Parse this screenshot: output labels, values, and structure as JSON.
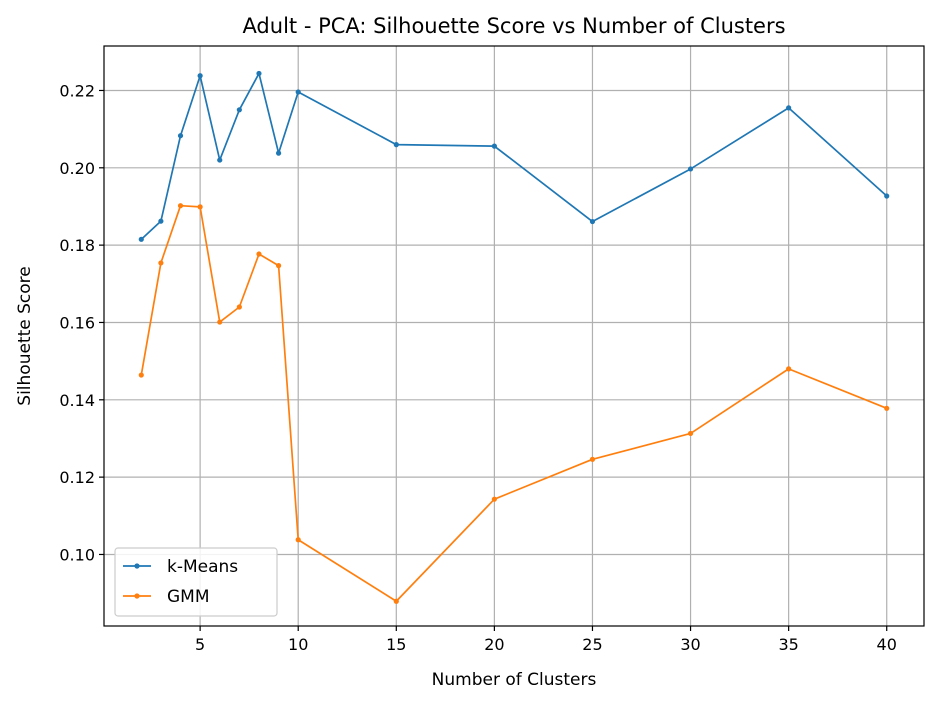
{
  "chart_data": {
    "type": "line",
    "title": "Adult - PCA: Silhouette Score vs Number of Clusters",
    "xlabel": "Number of Clusters",
    "ylabel": "Silhouette Score",
    "xlim": [
      0.1,
      41.9
    ],
    "ylim": [
      0.0815,
      0.2315
    ],
    "xticks": [
      5,
      10,
      15,
      20,
      25,
      30,
      35,
      40
    ],
    "yticks": [
      0.1,
      0.12,
      0.14,
      0.16,
      0.18,
      0.2,
      0.22
    ],
    "ytick_labels": [
      "0.10",
      "0.12",
      "0.14",
      "0.16",
      "0.18",
      "0.20",
      "0.22"
    ],
    "grid": true,
    "legend_position": "lower-left",
    "x": [
      2,
      3,
      4,
      5,
      6,
      7,
      8,
      9,
      10,
      15,
      20,
      25,
      30,
      35,
      40
    ],
    "series": [
      {
        "name": "k-Means",
        "color": "#1f77b4",
        "values": [
          0.1815,
          0.1862,
          0.2083,
          0.2238,
          0.202,
          0.215,
          0.2244,
          0.2038,
          0.2196,
          0.206,
          0.2056,
          0.1861,
          0.1997,
          0.2155,
          0.1927
        ]
      },
      {
        "name": "GMM",
        "color": "#ff7f0e",
        "values": [
          0.1464,
          0.1754,
          0.1902,
          0.1899,
          0.1601,
          0.164,
          0.1777,
          0.1747,
          0.1038,
          0.0879,
          0.1143,
          0.1246,
          0.1313,
          0.148,
          0.1378
        ]
      }
    ]
  }
}
